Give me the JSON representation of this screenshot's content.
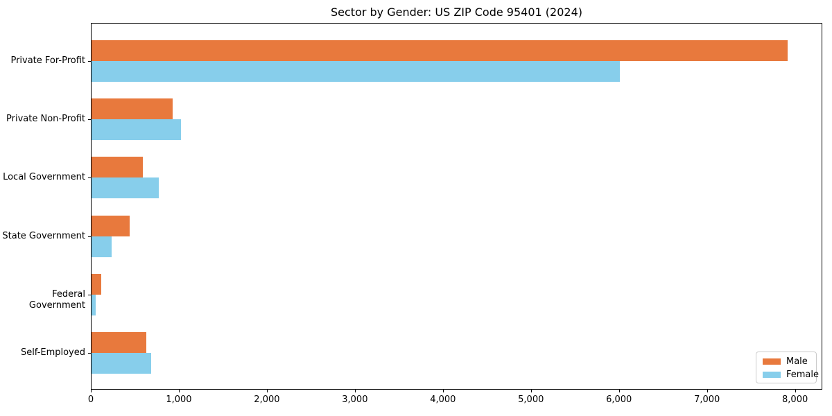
{
  "chart_data": {
    "type": "bar",
    "orientation": "horizontal",
    "title": "Sector by Gender: US ZIP Code 95401 (2024)",
    "categories": [
      "Private For-Profit",
      "Private Non-Profit",
      "Local Government",
      "State Government",
      "Federal Government",
      "Self-Employed"
    ],
    "series": [
      {
        "name": "Male",
        "color": "#E8793D",
        "values": [
          7910,
          920,
          580,
          435,
          110,
          620
        ]
      },
      {
        "name": "Female",
        "color": "#87CEEB",
        "values": [
          6000,
          1020,
          765,
          230,
          50,
          680
        ]
      }
    ],
    "xlabel": "",
    "ylabel": "",
    "xlim": [
      0,
      8310
    ],
    "xticks": [
      0,
      1000,
      2000,
      3000,
      4000,
      5000,
      6000,
      7000,
      8000
    ],
    "xtick_labels": [
      "0",
      "1,000",
      "2,000",
      "3,000",
      "4,000",
      "5,000",
      "6,000",
      "7,000",
      "8,000"
    ],
    "grid": false,
    "legend_position": "lower right",
    "legend_labels": [
      "Male",
      "Female"
    ]
  }
}
